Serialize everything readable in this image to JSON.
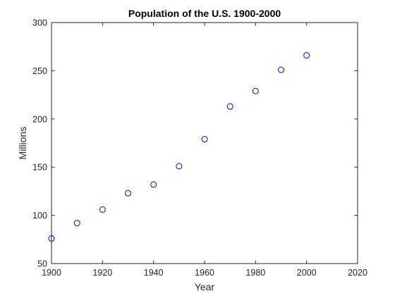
{
  "chart_data": {
    "type": "scatter",
    "title": "Population of the U.S. 1900-2000",
    "xlabel": "Year",
    "ylabel": "Millions",
    "xlim": [
      1900,
      2020
    ],
    "ylim": [
      50,
      300
    ],
    "xticks": [
      1900,
      1920,
      1940,
      1960,
      1980,
      2000,
      2020
    ],
    "yticks": [
      50,
      100,
      150,
      200,
      250,
      300
    ],
    "grid": false,
    "marker": "circle-open",
    "color": "#0000ff",
    "series": [
      {
        "x": [
          1900,
          1910,
          1920,
          1930,
          1940,
          1950,
          1960,
          1970,
          1980,
          1990,
          2000
        ],
        "y": [
          76,
          92,
          106,
          123,
          132,
          151,
          179,
          213,
          229,
          251,
          266
        ]
      }
    ]
  }
}
